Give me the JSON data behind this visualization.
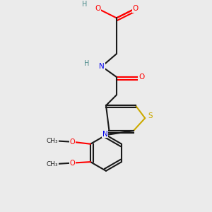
{
  "background_color": "#ebebeb",
  "bond_color": "#1a1a1a",
  "atom_colors": {
    "O": "#ff0000",
    "N": "#0000ee",
    "S": "#ccaa00",
    "H": "#4a8a8a",
    "C": "#1a1a1a"
  },
  "figsize": [
    3.0,
    3.0
  ],
  "dpi": 100
}
